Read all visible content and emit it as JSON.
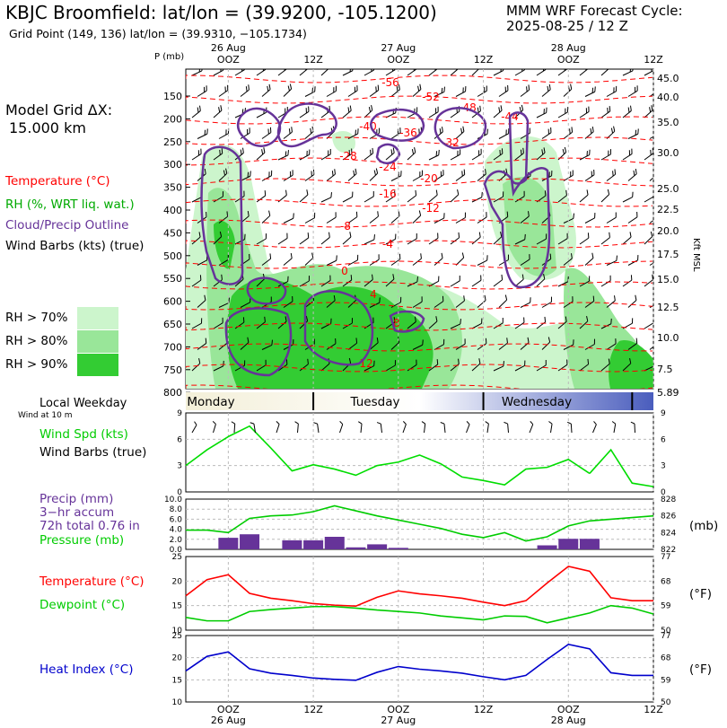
{
  "header": {
    "title": "KBJC Broomfield:  lat/lon = (39.9200, -105.1200)",
    "subtitle": "Grid Point (149, 136) lat/lon = (39.9310, −105.1734)",
    "cycle_line1": "MMM WRF Forecast Cycle:",
    "cycle_line2": "2025-08-25 / 12  Z",
    "grid_line1": "Model Grid ΔX:",
    "grid_line2": "15.000 km"
  },
  "legend": {
    "temperature": "Temperature (°C)",
    "rh": "RH (%, WRT liq. wat.)",
    "cloud": "Cloud/Precip Outline",
    "wind": "Wind Barbs (kts) (true)",
    "rh_levels": [
      "RH > 70%",
      "RH > 80%",
      "RH > 90%"
    ],
    "rh_colors": [
      "#ccf5cc",
      "#99e699",
      "#33cc33"
    ],
    "temp_color": "#ff0000",
    "cloud_color": "#663399"
  },
  "time_axis": {
    "dates_top": [
      "26 Aug",
      "27 Aug",
      "28 Aug"
    ],
    "hours": [
      "OOZ",
      "12Z",
      "OOZ",
      "12Z",
      "OOZ",
      "12Z"
    ],
    "dates_bottom": [
      "26 Aug",
      "27 Aug",
      "28 Aug"
    ],
    "weekdays": [
      "Monday",
      "Tuesday",
      "Wednesday"
    ]
  },
  "sections": {
    "local_weekday": "Local Weekday",
    "wind_at": "Wind at 10 m",
    "wind_spd": "Wind Spd (kts)",
    "wind_barbs": "Wind Barbs (true)",
    "precip": "Precip (mm)",
    "precip_accum": "3−hr accum",
    "precip_total": "72h total 0.76 in",
    "pressure": "Pressure (mb)",
    "temperature": "Temperature (°C)",
    "dewpoint": "Dewpoint (°C)",
    "heat_index": "Heat Index (°C)",
    "unit_mb": "(mb)",
    "unit_f": "(°F)"
  },
  "sounding": {
    "p_label": "P (mb)",
    "pressure_ticks": [
      "150",
      "200",
      "250",
      "300",
      "350",
      "400",
      "450",
      "500",
      "550",
      "600",
      "650",
      "700",
      "750",
      "800"
    ],
    "kft_ticks": [
      "45.0",
      "40.0",
      "35.0",
      "30.0",
      "25.0",
      "22.5",
      "20.0",
      "17.5",
      "15.0",
      "12.5",
      "10.0",
      "7.5",
      "5.89"
    ],
    "kft_label": "Kft MSL",
    "temp_labels": [
      "-56",
      "-52",
      "-48",
      "-44",
      "-40",
      "-36",
      "-32",
      "-28",
      "-24",
      "-20",
      "-16",
      "-12",
      "-8",
      "-4",
      "0",
      "4",
      "8",
      "12"
    ]
  },
  "chart_data": [
    {
      "type": "line",
      "title": "Wind Spd (kts)",
      "ylim": [
        0,
        9
      ],
      "y_ticks": [
        "0",
        "3",
        "6",
        "9"
      ],
      "series": [
        {
          "name": "Wind Spd (kts)",
          "color": "#00dd00",
          "x": [
            0,
            3,
            6,
            9,
            12,
            15,
            18,
            21,
            24,
            27,
            30,
            33,
            36,
            39,
            42,
            45,
            48,
            51,
            54,
            57
          ],
          "values": [
            3.0,
            4.8,
            6.3,
            7.5,
            5.0,
            2.4,
            3.1,
            2.6,
            1.9,
            3.0,
            3.4,
            4.2,
            3.2,
            1.7,
            1.3,
            0.8,
            2.6,
            2.8,
            3.7,
            2.1
          ]
        },
        {
          "name": "tail",
          "color": "#00dd00",
          "x": [
            57,
            60,
            63,
            66
          ],
          "values": [
            2.1,
            4.8,
            1.0,
            0.6
          ]
        }
      ]
    },
    {
      "type": "bar",
      "title": "Precip (mm) / Pressure (mb)",
      "ylim": [
        0,
        10
      ],
      "y_ticks": [
        "0.0",
        "2.0",
        "4.0",
        "6.0",
        "8.0",
        "10.0"
      ],
      "y2_ticks": [
        "822",
        "824",
        "826",
        "828"
      ],
      "y2lim": [
        822,
        828
      ],
      "precip_x": [
        6,
        9,
        15,
        18,
        21,
        24,
        27,
        30,
        51,
        54,
        57
      ],
      "precip_values": [
        2.3,
        3.0,
        1.8,
        1.8,
        2.5,
        0.4,
        1.0,
        0.3,
        0.8,
        2.1,
        2.1
      ],
      "pressure": {
        "name": "Pressure (mb)",
        "color": "#00cc00",
        "x": [
          0,
          3,
          6,
          9,
          12,
          15,
          18,
          21,
          24,
          27,
          30,
          33,
          36,
          39,
          42,
          45,
          48,
          51,
          54,
          57,
          60,
          63,
          66
        ],
        "values": [
          824.3,
          824.3,
          824.0,
          825.7,
          826.0,
          826.1,
          826.5,
          827.2,
          826.6,
          826.0,
          825.5,
          825.0,
          824.5,
          823.8,
          823.4,
          824.0,
          823.0,
          823.5,
          824.8,
          825.4,
          825.6,
          825.8,
          826.0
        ]
      }
    },
    {
      "type": "line",
      "title": "Temperature / Dewpoint",
      "ylim": [
        10,
        25
      ],
      "y_ticks": [
        "10",
        "15",
        "20",
        "25"
      ],
      "y2_ticks": [
        "50",
        "59",
        "68",
        "77"
      ],
      "series": [
        {
          "name": "Temperature (°C)",
          "color": "#ff0000",
          "x": [
            0,
            3,
            6,
            9,
            12,
            15,
            18,
            21,
            24,
            27,
            30,
            33,
            36,
            39,
            42,
            45,
            48,
            51,
            54,
            57,
            60,
            63,
            66
          ],
          "values": [
            17.0,
            20.3,
            21.3,
            17.5,
            16.5,
            16.0,
            15.4,
            15.1,
            14.9,
            16.7,
            18.0,
            17.4,
            17.0,
            16.5,
            15.7,
            15.0,
            16.0,
            19.6,
            23.0,
            22.0,
            16.6,
            16.0,
            16.0
          ]
        },
        {
          "name": "Dewpoint (°C)",
          "color": "#00cc00",
          "x": [
            0,
            3,
            6,
            9,
            12,
            15,
            18,
            21,
            24,
            27,
            30,
            33,
            36,
            39,
            42,
            45,
            48,
            51,
            54,
            57,
            60,
            63,
            66
          ],
          "values": [
            12.6,
            11.9,
            11.9,
            13.8,
            14.2,
            14.5,
            14.8,
            14.8,
            14.5,
            14.1,
            13.8,
            13.5,
            12.9,
            12.5,
            12.1,
            12.9,
            12.8,
            11.5,
            12.5,
            13.5,
            15.0,
            14.5,
            13.3
          ]
        }
      ]
    },
    {
      "type": "line",
      "title": "Heat Index (°C)",
      "ylim": [
        10,
        25
      ],
      "y_ticks": [
        "10",
        "15",
        "20",
        "25"
      ],
      "y2_ticks": [
        "50",
        "59",
        "68",
        "77"
      ],
      "series": [
        {
          "name": "Heat Index (°C)",
          "color": "#0000cc",
          "x": [
            0,
            3,
            6,
            9,
            12,
            15,
            18,
            21,
            24,
            27,
            30,
            33,
            36,
            39,
            42,
            45,
            48,
            51,
            54,
            57,
            60,
            63,
            66
          ],
          "values": [
            17.0,
            20.3,
            21.3,
            17.5,
            16.5,
            16.0,
            15.4,
            15.1,
            14.9,
            16.7,
            18.0,
            17.4,
            17.0,
            16.5,
            15.7,
            15.0,
            16.0,
            19.6,
            23.0,
            22.0,
            16.6,
            16.0,
            16.0
          ]
        }
      ]
    }
  ]
}
